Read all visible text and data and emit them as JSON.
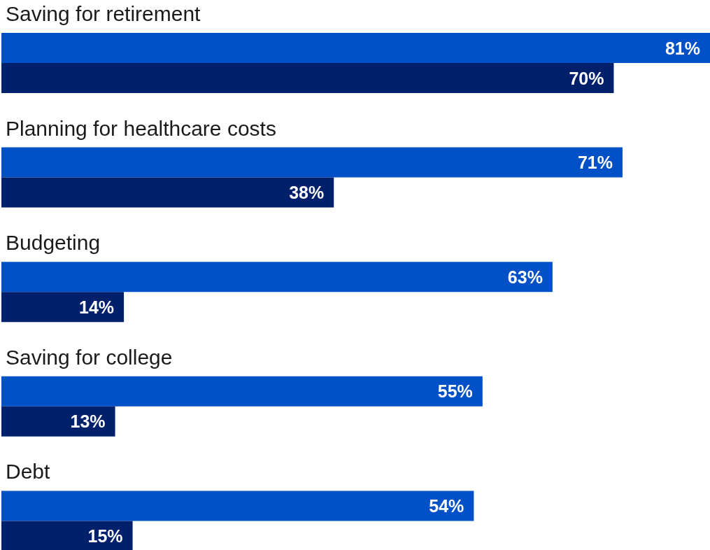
{
  "chart_data": {
    "type": "bar",
    "orientation": "horizontal",
    "categories": [
      "Saving for retirement",
      "Planning for healthcare costs",
      "Budgeting",
      "Saving for college",
      "Debt"
    ],
    "series": [
      {
        "color": "#0050c8",
        "values": [
          81,
          71,
          63,
          55,
          54
        ],
        "value_labels": [
          "81%",
          "71%",
          "63%",
          "55%",
          "54%"
        ]
      },
      {
        "color": "#00206b",
        "values": [
          70,
          38,
          14,
          13,
          15
        ],
        "value_labels": [
          "70%",
          "38%",
          "14%",
          "13%",
          "15%"
        ]
      }
    ]
  }
}
